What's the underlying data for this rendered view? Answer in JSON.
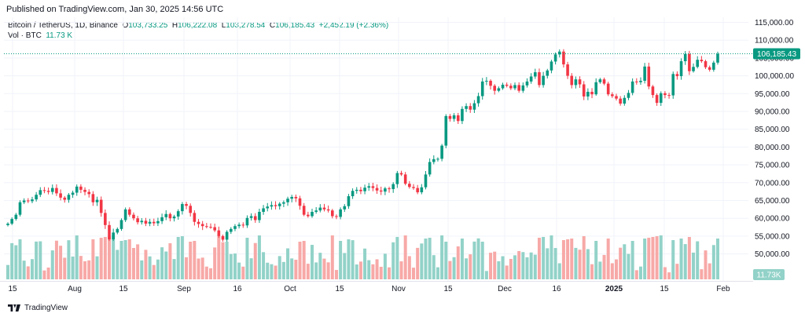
{
  "header": {
    "published": "Published on TradingView.com, Jan 30, 2025 14:56 UTC"
  },
  "legend": {
    "symbol": "Bitcoin / TetherUS, 1D, Binance",
    "o_label": "O",
    "o": "103,733.25",
    "h_label": "H",
    "h": "106,222.08",
    "l_label": "L",
    "l": "103,278.54",
    "c_label": "C",
    "c": "106,185.43",
    "change": "+2,452.19 (+2.36%)",
    "vol_label": "Vol · BTC",
    "vol_value": "11.73 K"
  },
  "footer": {
    "brand": "TradingView"
  },
  "colors": {
    "up": "#089981",
    "down": "#f23645",
    "up_vol": "#92d2c8",
    "down_vol": "#f7a9a7",
    "grid": "#f0f3fa",
    "text": "#131722"
  },
  "chart_data": {
    "type": "candlestick",
    "symbol": "BTCUSDT",
    "timeframe": "1D",
    "y_ticks": [
      "115,000.00",
      "110,000.00",
      "105,000.00",
      "100,000.00",
      "95,000.00",
      "90,000.00",
      "85,000.00",
      "80,000.00",
      "75,000.00",
      "70,000.00",
      "65,000.00",
      "60,000.00",
      "55,000.00",
      "50,000.00"
    ],
    "ylim": [
      45000,
      117000
    ],
    "x_ticks": [
      "15",
      "Aug",
      "15",
      "Sep",
      "16",
      "Oct",
      "15",
      "Nov",
      "15",
      "Dec",
      "16",
      "2025",
      "15",
      "Feb"
    ],
    "last_price_label": "106,185.43",
    "volume_label": "11.73K",
    "closes": [
      58500,
      59800,
      61000,
      64500,
      65000,
      64800,
      65300,
      66600,
      67900,
      67700,
      67400,
      68500,
      67000,
      65800,
      65200,
      66600,
      67200,
      68900,
      68000,
      67400,
      66800,
      64500,
      65200,
      61500,
      58100,
      54100,
      56000,
      57000,
      59500,
      62500,
      61000,
      60000,
      58900,
      59300,
      58500,
      59000,
      58600,
      59200,
      60300,
      61200,
      60000,
      60500,
      62000,
      64000,
      63500,
      61500,
      59000,
      58400,
      57800,
      57600,
      57500,
      56600,
      55000,
      54000,
      56200,
      57000,
      57800,
      58200,
      58000,
      60100,
      60600,
      59500,
      61800,
      62800,
      63300,
      63700,
      63400,
      64100,
      64500,
      65500,
      66000,
      65600,
      63500,
      61000,
      60600,
      61800,
      62200,
      63000,
      62500,
      62200,
      60600,
      60400,
      62500,
      63400,
      66200,
      67700,
      68000,
      67600,
      68600,
      69000,
      68500,
      67800,
      67500,
      68400,
      68200,
      69600,
      72700,
      72300,
      69700,
      68800,
      68500,
      67300,
      68700,
      72300,
      75800,
      76600,
      76700,
      80400,
      88700,
      87900,
      88900,
      87300,
      90700,
      91500,
      90500,
      92300,
      94300,
      98400,
      98600,
      97200,
      95800,
      96500,
      97500,
      97200,
      96500,
      97400,
      95800,
      97300,
      98400,
      99800,
      101000,
      97400,
      100000,
      101500,
      104000,
      106000,
      106800,
      103200,
      100000,
      97400,
      99000,
      97600,
      94200,
      95500,
      94800,
      98200,
      99000,
      97800,
      94800,
      94300,
      93600,
      92200,
      93800,
      95200,
      98400,
      98200,
      98600,
      102600,
      97000,
      94600,
      92400,
      95100,
      94600,
      94500,
      100500,
      99900,
      104100,
      106100,
      101300,
      102500,
      104500,
      104100,
      102400,
      101700,
      103700,
      106185
    ]
  }
}
